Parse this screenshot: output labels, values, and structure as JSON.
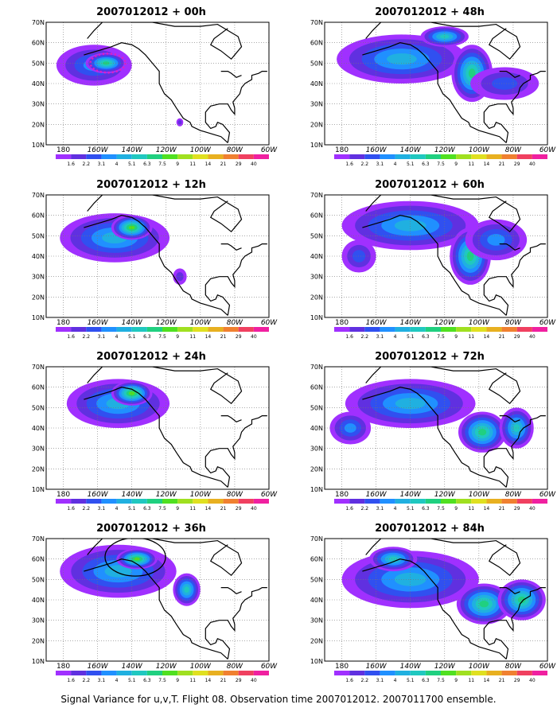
{
  "chart_data": [
    {
      "type": "heatmap",
      "title": "2007012012 + 00h",
      "blobs": [
        [
          -162,
          49,
          22,
          10,
          3
        ],
        [
          -155,
          50,
          12,
          5,
          6
        ],
        [
          -112,
          21,
          2,
          2,
          1
        ]
      ],
      "target_ring": true
    },
    {
      "type": "heatmap",
      "title": "2007012012 + 48h",
      "blobs": [
        [
          -145,
          52,
          38,
          12,
          4
        ],
        [
          -104,
          45,
          12,
          14,
          6
        ],
        [
          -120,
          63,
          14,
          5,
          5
        ],
        [
          -85,
          40,
          20,
          8,
          2
        ]
      ]
    },
    {
      "type": "heatmap",
      "title": "2007012012 + 12h",
      "blobs": [
        [
          -150,
          49,
          32,
          12,
          4
        ],
        [
          -140,
          54,
          12,
          6,
          7
        ],
        [
          -112,
          30,
          4,
          4,
          1
        ]
      ]
    },
    {
      "type": "heatmap",
      "title": "2007012012 + 60h",
      "blobs": [
        [
          -140,
          55,
          40,
          12,
          4
        ],
        [
          -105,
          40,
          12,
          14,
          6
        ],
        [
          -90,
          48,
          18,
          10,
          3
        ],
        [
          -170,
          40,
          10,
          8,
          2
        ]
      ]
    },
    {
      "type": "heatmap",
      "title": "2007012012 + 24h",
      "blobs": [
        [
          -148,
          52,
          30,
          12,
          4
        ],
        [
          -140,
          57,
          12,
          6,
          7
        ]
      ]
    },
    {
      "type": "heatmap",
      "title": "2007012012 + 72h",
      "blobs": [
        [
          -140,
          52,
          38,
          12,
          4
        ],
        [
          -98,
          38,
          14,
          10,
          6
        ],
        [
          -175,
          40,
          12,
          8,
          3
        ],
        [
          -78,
          40,
          10,
          10,
          5
        ]
      ]
    },
    {
      "type": "heatmap",
      "title": "2007012012 + 36h",
      "blobs": [
        [
          -148,
          54,
          34,
          13,
          4
        ],
        [
          -137,
          60,
          12,
          5,
          7
        ],
        [
          -108,
          45,
          8,
          8,
          5
        ]
      ],
      "circle": true
    },
    {
      "type": "heatmap",
      "title": "2007012012 + 84h",
      "blobs": [
        [
          -140,
          50,
          40,
          14,
          4
        ],
        [
          -97,
          38,
          16,
          10,
          6
        ],
        [
          -75,
          40,
          14,
          10,
          6
        ],
        [
          -150,
          60,
          14,
          6,
          5
        ]
      ]
    }
  ],
  "shared": {
    "xtick_labels": [
      "180",
      "160W",
      "140W",
      "120W",
      "100W",
      "80W",
      "60W"
    ],
    "xticks": [
      -180,
      -160,
      -140,
      -120,
      -100,
      -80,
      -60
    ],
    "ytick_labels": [
      "10N",
      "20N",
      "30N",
      "40N",
      "50N",
      "60N",
      "70N"
    ],
    "yticks": [
      10,
      20,
      30,
      40,
      50,
      60,
      70
    ],
    "xlim": [
      -190,
      -60
    ],
    "ylim": [
      10,
      70
    ],
    "colorbar_levels": [
      "1.6",
      "2.2",
      "3.1",
      "4",
      "5.1",
      "6.3",
      "7.5",
      "9",
      "11",
      "14",
      "21",
      "29",
      "40"
    ],
    "colorbar_colors": [
      "#a030ff",
      "#6030e0",
      "#3050f0",
      "#2090ff",
      "#20b0e0",
      "#20c8c0",
      "#20d080",
      "#50e020",
      "#a0e020",
      "#e0e020",
      "#e8b020",
      "#f08030",
      "#f04060",
      "#f020a0"
    ]
  },
  "caption": "Signal Variance for u,v,T. Flight 08. Observation time 2007012012. 2007011700 ensemble."
}
